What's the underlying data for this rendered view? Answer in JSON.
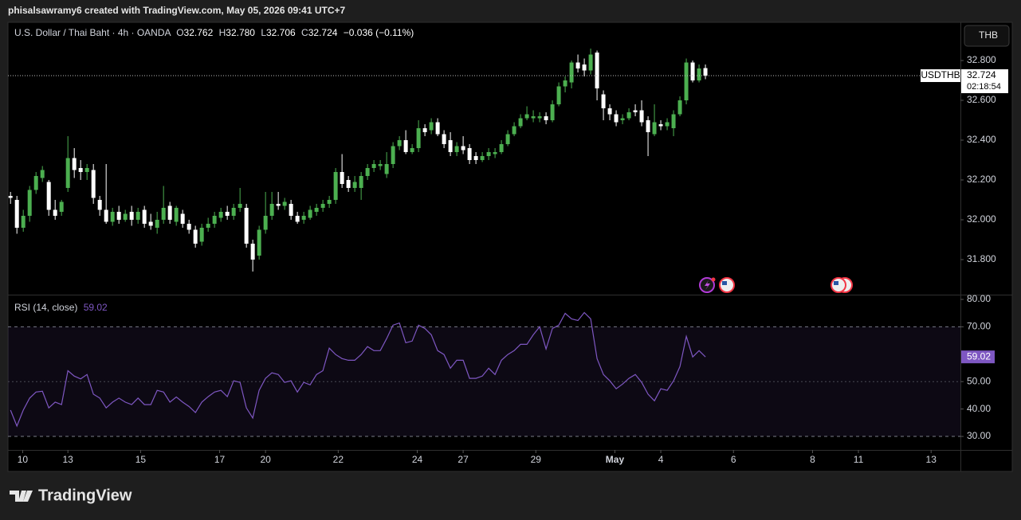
{
  "header": {
    "credit": "phisalsawramy6 created with TradingView.com, May 05, 2026 09:41 UTC+7",
    "currency": "THB"
  },
  "legend": {
    "symbol": "U.S. Dollar / Thai Baht · 4h · OANDA",
    "fields": [
      {
        "key": "O",
        "value": "32.762"
      },
      {
        "key": "H",
        "value": "32.780"
      },
      {
        "key": "L",
        "value": "32.706"
      },
      {
        "key": "C",
        "value": "32.724"
      }
    ],
    "change": "−0.036 (−0.11%)"
  },
  "price_tag": {
    "ticker": "USDTHB",
    "countdown": "02:18:54"
  },
  "footer": {
    "brand": "TradingView"
  },
  "chart_data": [
    {
      "type": "candlestick",
      "up_color": "#4caf50",
      "down_color": "#ffffff",
      "grid": false,
      "last_price": 32.724,
      "ylim": [
        31.624,
        32.992
      ],
      "yticks": [
        {
          "value": 32.8,
          "label": "32.800"
        },
        {
          "value": 32.6,
          "label": "32.600"
        },
        {
          "value": 32.4,
          "label": "32.400"
        },
        {
          "value": 32.2,
          "label": "32.200"
        },
        {
          "value": 32,
          "label": "32.000"
        },
        {
          "value": 31.8,
          "label": "31.800"
        }
      ],
      "xlim": [
        -0.4,
        149
      ],
      "xticks": [
        {
          "value": 1.9,
          "label": "10"
        },
        {
          "value": 9,
          "label": "13"
        },
        {
          "value": 20.4,
          "label": "15"
        },
        {
          "value": 32.8,
          "label": "17"
        },
        {
          "value": 40,
          "label": "20"
        },
        {
          "value": 51.4,
          "label": "22"
        },
        {
          "value": 63.8,
          "label": "24"
        },
        {
          "value": 71,
          "label": "27"
        },
        {
          "value": 82.4,
          "label": "29"
        },
        {
          "value": 94.8,
          "label": "May"
        },
        {
          "value": 102,
          "label": "4"
        },
        {
          "value": 113.4,
          "label": "6"
        },
        {
          "value": 125.8,
          "label": "8"
        },
        {
          "value": 133,
          "label": "11"
        },
        {
          "value": 144.4,
          "label": "13"
        }
      ],
      "open": [
        32.12,
        32.1,
        31.96,
        32.02,
        32.15,
        32.21,
        32.19,
        32.05,
        32.04,
        32.16,
        32.31,
        32.26,
        32.24,
        32.25,
        32.1,
        32.05,
        31.99,
        32.04,
        32.0,
        32.04,
        32.0,
        32.05,
        31.99,
        31.96,
        32.0,
        32.07,
        31.99,
        32.03,
        31.98,
        31.95,
        31.89,
        31.96,
        31.98,
        32.01,
        32.04,
        32.02,
        32.06,
        32.06,
        31.88,
        31.82,
        31.95,
        32.02,
        32.08,
        32.07,
        32.08,
        32.02,
        32.0,
        32.01,
        32.04,
        32.06,
        32.08,
        32.1,
        32.24,
        32.2,
        32.16,
        32.16,
        32.22,
        32.26,
        32.27,
        32.23,
        32.28,
        32.37,
        32.4,
        32.34,
        32.36,
        32.46,
        32.45,
        32.49,
        32.43,
        32.4,
        32.34,
        32.37,
        32.36,
        32.32,
        32.3,
        32.32,
        32.33,
        32.34,
        32.38,
        32.43,
        32.47,
        32.51,
        32.51,
        32.51,
        32.52,
        32.5,
        32.58,
        32.67,
        32.69,
        32.79,
        32.78,
        32.75,
        32.84,
        32.63,
        32.56,
        32.53,
        32.5,
        32.51,
        32.55,
        32.55,
        32.5,
        32.43,
        32.48,
        32.47,
        32.46,
        32.53,
        32.6,
        32.79,
        32.7,
        32.762
      ],
      "high": [
        32.14,
        32.12,
        32.05,
        32.17,
        32.24,
        32.27,
        32.2,
        32.1,
        32.1,
        32.42,
        32.36,
        32.3,
        32.28,
        32.28,
        32.12,
        32.28,
        32.06,
        32.07,
        32.05,
        32.07,
        32.06,
        32.07,
        32.03,
        32.04,
        32.17,
        32.09,
        32.07,
        32.05,
        32.0,
        31.97,
        31.98,
        32.01,
        32.04,
        32.06,
        32.07,
        32.08,
        32.16,
        32.08,
        31.9,
        31.97,
        32.14,
        32.14,
        32.14,
        32.11,
        32.1,
        32.04,
        32.04,
        32.07,
        32.08,
        32.1,
        32.12,
        32.26,
        32.33,
        32.22,
        32.22,
        32.24,
        32.28,
        32.3,
        32.3,
        32.34,
        32.39,
        32.42,
        32.45,
        32.38,
        32.5,
        32.48,
        32.51,
        32.51,
        32.45,
        32.44,
        32.39,
        32.42,
        32.38,
        32.34,
        32.34,
        32.36,
        32.36,
        32.4,
        32.45,
        32.49,
        32.53,
        32.57,
        32.55,
        32.54,
        32.54,
        32.6,
        32.69,
        32.72,
        32.8,
        32.83,
        32.81,
        32.86,
        32.85,
        32.65,
        32.58,
        32.55,
        32.53,
        32.56,
        32.58,
        32.6,
        32.52,
        32.58,
        32.5,
        32.51,
        32.55,
        32.62,
        32.81,
        32.8,
        32.78,
        32.78
      ],
      "low": [
        32.08,
        31.93,
        31.94,
        31.99,
        32.13,
        32.19,
        32.02,
        32.0,
        32.02,
        32.14,
        32.21,
        32.2,
        32.2,
        32.08,
        32.02,
        31.98,
        31.97,
        31.98,
        31.99,
        31.97,
        31.98,
        31.96,
        31.95,
        31.93,
        31.98,
        31.98,
        31.97,
        31.96,
        31.93,
        31.86,
        31.87,
        31.94,
        31.96,
        31.99,
        32.0,
        32.0,
        32.04,
        31.86,
        31.74,
        31.8,
        31.93,
        32.0,
        32.05,
        32.05,
        32.0,
        31.98,
        31.98,
        32.0,
        32.02,
        32.04,
        32.06,
        32.08,
        32.16,
        32.14,
        32.14,
        32.1,
        32.2,
        32.24,
        32.25,
        32.21,
        32.26,
        32.35,
        32.33,
        32.33,
        32.34,
        32.42,
        32.43,
        32.42,
        32.36,
        32.32,
        32.32,
        32.33,
        32.28,
        32.28,
        32.29,
        32.3,
        32.31,
        32.33,
        32.37,
        32.42,
        32.46,
        32.5,
        32.49,
        32.49,
        32.48,
        32.49,
        32.57,
        32.64,
        32.66,
        32.74,
        32.72,
        32.73,
        32.6,
        32.5,
        32.5,
        32.47,
        32.48,
        32.5,
        32.52,
        32.47,
        32.32,
        32.42,
        32.45,
        32.45,
        32.42,
        32.52,
        32.58,
        32.69,
        32.69,
        32.706
      ],
      "close": [
        32.11,
        31.96,
        32.02,
        32.15,
        32.22,
        32.25,
        32.05,
        32.02,
        32.09,
        32.31,
        32.25,
        32.24,
        32.26,
        32.11,
        32.05,
        31.99,
        32.04,
        32.0,
        32.03,
        32.0,
        32.04,
        31.98,
        31.97,
        32.0,
        32.06,
        32.0,
        32.06,
        31.98,
        31.95,
        31.88,
        31.96,
        31.98,
        32.02,
        32.04,
        32.02,
        32.06,
        32.08,
        31.88,
        31.8,
        31.95,
        32.02,
        32.08,
        32.07,
        32.09,
        32.02,
        31.99,
        32.02,
        32.05,
        32.06,
        32.08,
        32.1,
        32.24,
        32.18,
        32.16,
        32.19,
        32.22,
        32.26,
        32.28,
        32.28,
        32.28,
        32.37,
        32.4,
        32.34,
        32.36,
        32.46,
        32.44,
        32.49,
        32.43,
        32.38,
        32.34,
        32.37,
        32.35,
        32.3,
        32.3,
        32.32,
        32.34,
        32.34,
        32.38,
        32.43,
        32.47,
        32.51,
        32.53,
        32.52,
        32.52,
        32.5,
        32.58,
        32.67,
        32.7,
        32.79,
        32.76,
        32.75,
        32.83,
        32.66,
        32.56,
        32.53,
        32.49,
        32.51,
        32.54,
        32.54,
        32.49,
        32.44,
        32.49,
        32.47,
        32.49,
        32.53,
        32.6,
        32.79,
        32.7,
        32.76,
        32.724
      ]
    },
    {
      "type": "line",
      "title": "RSI (14, close)",
      "color": "#7e57c2",
      "ylim": [
        25.07,
        81.74
      ],
      "yticks": [
        {
          "value": 80,
          "label": "80.00"
        },
        {
          "value": 70,
          "label": "70.00"
        },
        {
          "value": 50,
          "label": "50.00"
        },
        {
          "value": 40,
          "label": "40.00"
        },
        {
          "value": 30,
          "label": "30.00"
        }
      ],
      "bands": [
        70,
        50,
        30
      ],
      "values": [
        39.6,
        33.8,
        39.6,
        44,
        46.2,
        46.5,
        40.4,
        42.5,
        41.6,
        54,
        52,
        51,
        52.6,
        45.4,
        44,
        40.4,
        42.5,
        44,
        42.5,
        41.6,
        44,
        41.6,
        41.6,
        46.8,
        46.2,
        42.5,
        44.4,
        42.5,
        40.9,
        38.7,
        42.5,
        44.5,
        46.2,
        46.8,
        44.5,
        50.3,
        49.7,
        40.4,
        36.7,
        46.8,
        51.2,
        53.2,
        52.6,
        49.7,
        50.3,
        46.2,
        49.7,
        48.8,
        52.6,
        54,
        62.2,
        59.9,
        58.4,
        57.8,
        57.8,
        59.9,
        62.8,
        61.3,
        61.3,
        65.7,
        70.6,
        71.4,
        64.2,
        64.8,
        70.6,
        69.4,
        67.1,
        61.3,
        59.9,
        54.9,
        57.8,
        57.8,
        51.2,
        51.2,
        52,
        54.9,
        52.6,
        57.8,
        59.9,
        61.3,
        63.6,
        63.6,
        67.1,
        70,
        61.9,
        69.4,
        70.6,
        74.9,
        72.9,
        72.3,
        75.2,
        72.9,
        58.4,
        52.6,
        50.3,
        47.4,
        49.1,
        51.2,
        52.6,
        49.7,
        45.4,
        43,
        47.4,
        46.8,
        50.3,
        55.5,
        66.5,
        59,
        61.3,
        59.02
      ],
      "value_labels": {
        "109": "59.02"
      }
    }
  ]
}
